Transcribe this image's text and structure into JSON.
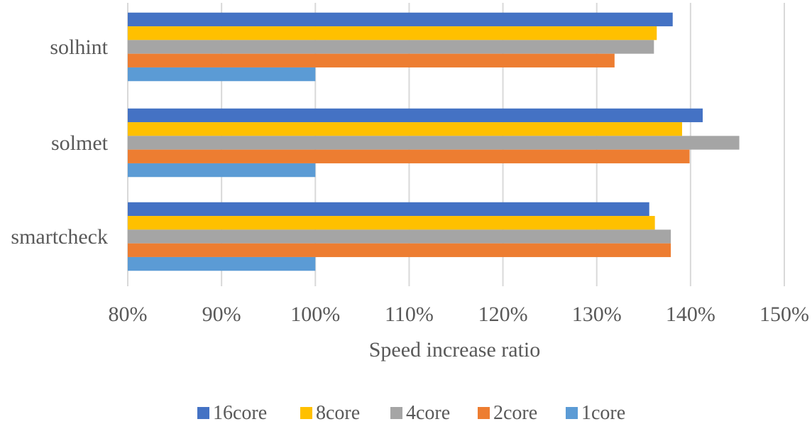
{
  "chart_data": {
    "type": "bar",
    "orientation": "horizontal",
    "categories": [
      "solhint",
      "solmet",
      "smartcheck"
    ],
    "series": [
      {
        "name": "16core",
        "color": "#4472C4",
        "values": [
          138.1,
          141.3,
          135.6
        ]
      },
      {
        "name": "8core",
        "color": "#FFC000",
        "values": [
          136.4,
          139.1,
          136.2
        ]
      },
      {
        "name": "4core",
        "color": "#A5A5A5",
        "values": [
          136.1,
          145.2,
          137.9
        ]
      },
      {
        "name": "2core",
        "color": "#ED7D31",
        "values": [
          131.9,
          139.9,
          137.9
        ]
      },
      {
        "name": "1core",
        "color": "#5B9BD5",
        "values": [
          100.0,
          100.0,
          100.0
        ]
      }
    ],
    "xlabel": "Speed increase ratio",
    "ylabel": "",
    "xlim": [
      80,
      150
    ],
    "ticks": [
      "80%",
      "90%",
      "100%",
      "110%",
      "120%",
      "130%",
      "140%",
      "150%"
    ],
    "tick_values": [
      80,
      90,
      100,
      110,
      120,
      130,
      140,
      150
    ],
    "grid": "vertical",
    "legend_position": "bottom"
  }
}
